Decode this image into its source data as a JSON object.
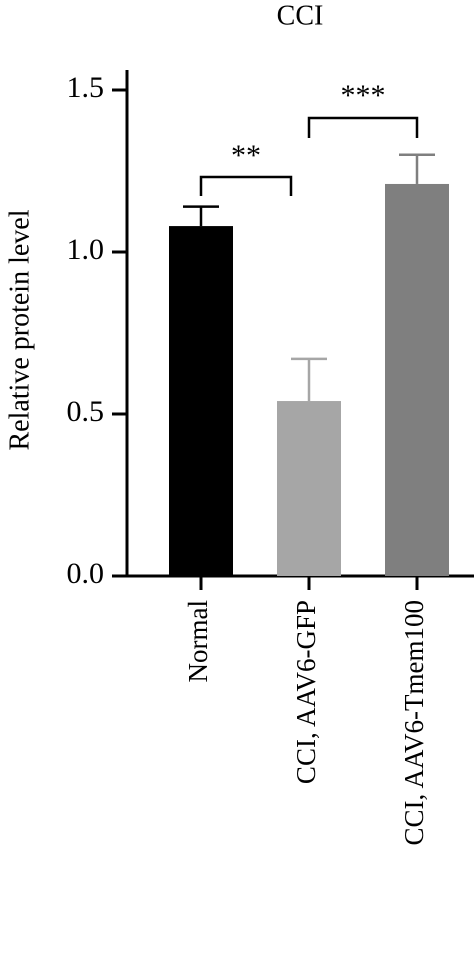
{
  "chart_data": {
    "type": "bar",
    "title": "CCI",
    "y_label": "Relative protein level",
    "categories": [
      "Normal",
      "CCI, AAV6-GFP",
      "CCI, AAV6-Tmem100"
    ],
    "values": [
      1.08,
      0.54,
      1.21
    ],
    "errors": [
      0.06,
      0.13,
      0.09
    ],
    "colors": [
      "#000000",
      "#a6a6a6",
      "#7f7f7f"
    ],
    "ylim": [
      0,
      1.55
    ],
    "yticks": [
      {
        "value": 0,
        "label": "0.0"
      },
      {
        "value": 0.5,
        "label": "0.5"
      },
      {
        "value": 1,
        "label": "1.0"
      },
      {
        "value": 1.5,
        "label": "1.5"
      }
    ],
    "annotations": [
      "**",
      "***"
    ]
  }
}
